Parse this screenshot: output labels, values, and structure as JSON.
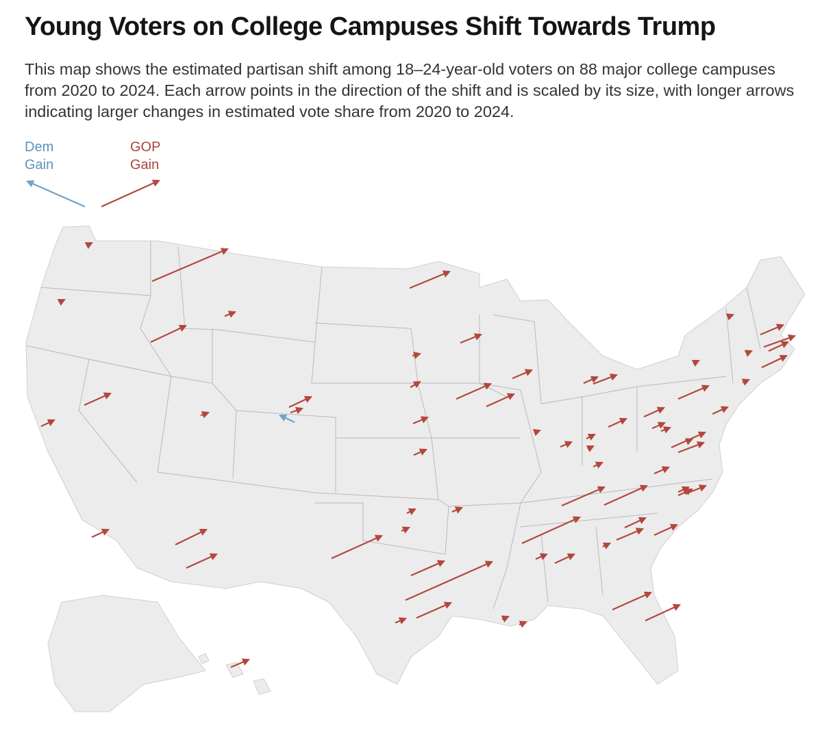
{
  "title": "Young Voters on College Campuses Shift Towards Trump",
  "subtitle": "This map shows the estimated partisan shift among 18–24-year-old voters on 88 major college campuses from 2020 to 2024. Each arrow points in the direction of the shift and is scaled by its size, with longer arrows indicating larger changes in estimated vote share from 2020 to 2024.",
  "legend": {
    "dem_label_line1": "Dem",
    "dem_label_line2": "Gain",
    "gop_label_line1": "GOP",
    "gop_label_line2": "Gain"
  },
  "colors": {
    "dem": "#6fa3c8",
    "gop": "#b3473d",
    "land": "#ececec",
    "border": "#b9b9b9"
  },
  "campus_count": 88
}
